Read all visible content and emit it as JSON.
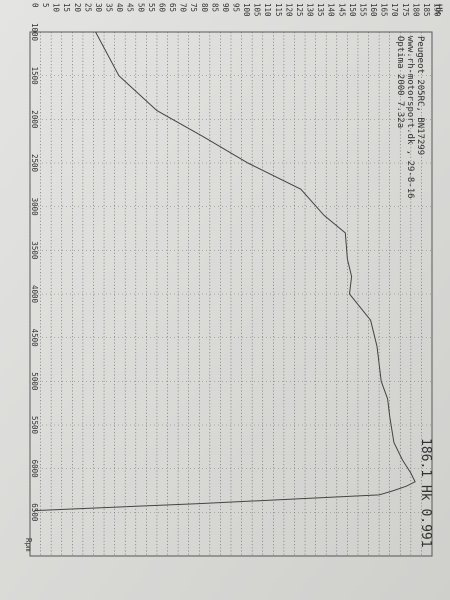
{
  "chart_data": {
    "type": "line",
    "header": [
      "Optima 2000 7.32a",
      "www.rh-motorsport.dk , 29-8-16",
      "Peugeot 205RC, BN17299"
    ],
    "annotation": "186.1 Hk 0.991",
    "x_label": "Rpm",
    "y_label": "Hk",
    "x": [
      1000,
      1500,
      1900,
      2200,
      2500,
      2800,
      3100,
      3300,
      3600,
      3800,
      4000,
      4300,
      4600,
      5000,
      5200,
      5400,
      5700,
      5900,
      6050,
      6150,
      6200,
      6250,
      6300,
      6400,
      6480
    ],
    "series": [
      {
        "name": "Hk",
        "color": "#444444",
        "values": [
          31,
          42,
          60,
          82,
          103,
          128,
          139,
          149,
          150,
          152,
          151,
          161,
          164,
          166,
          169,
          170,
          172,
          176,
          180,
          182,
          178,
          172,
          165,
          80,
          2
        ]
      }
    ],
    "xlim": [
      1000,
      7000
    ],
    "xticks": [
      1000,
      1500,
      2000,
      2500,
      3000,
      3500,
      4000,
      4500,
      5000,
      5500,
      6000,
      6500
    ],
    "ylim": [
      0,
      190
    ],
    "yticks": [
      0,
      5,
      10,
      15,
      20,
      25,
      30,
      35,
      40,
      45,
      50,
      55,
      60,
      65,
      70,
      75,
      80,
      85,
      90,
      95,
      100,
      105,
      110,
      115,
      120,
      125,
      130,
      135,
      140,
      145,
      150,
      155,
      160,
      165,
      170,
      175,
      180,
      185,
      190
    ],
    "grid": true
  }
}
